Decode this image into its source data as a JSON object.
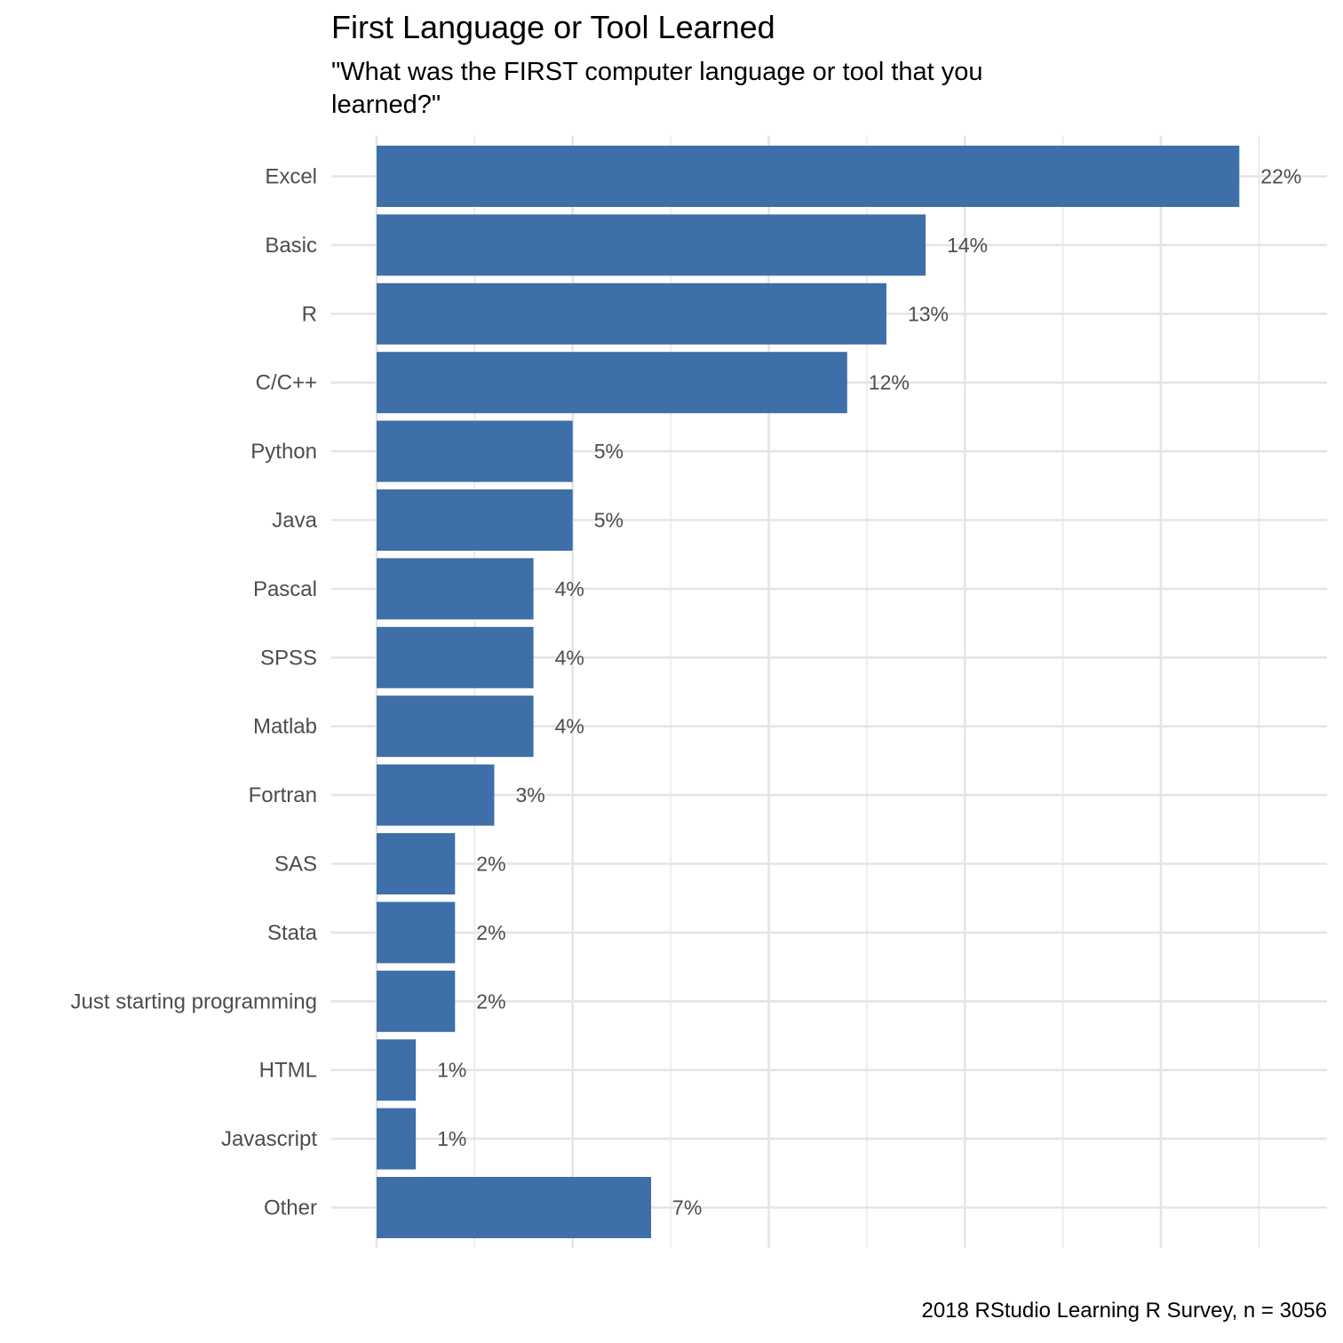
{
  "chart_data": {
    "type": "bar",
    "orientation": "horizontal",
    "title": "First Language or Tool Learned",
    "subtitle": "\"What was the FIRST computer language or tool that you learned?\"",
    "caption": "2018 RStudio Learning R Survey, n = 3056",
    "categories": [
      "Excel",
      "Basic",
      "R",
      "C/C++",
      "Python",
      "Java",
      "Pascal",
      "SPSS",
      "Matlab",
      "Fortran",
      "SAS",
      "Stata",
      "Just starting programming",
      "HTML",
      "Javascript",
      "Other"
    ],
    "values": [
      22,
      14,
      13,
      12,
      5,
      5,
      4,
      4,
      4,
      3,
      2,
      2,
      2,
      1,
      1,
      7
    ],
    "value_labels": [
      "22%",
      "14%",
      "13%",
      "12%",
      "5%",
      "5%",
      "4%",
      "4%",
      "4%",
      "3%",
      "2%",
      "2%",
      "2%",
      "1%",
      "1%",
      "7%"
    ],
    "xlim": [
      0,
      24
    ],
    "grid": true,
    "axis_text_x": false,
    "bar_color": "#3e6fa8",
    "grid_color": "#e5e5e5",
    "text_color": "#4d4d4d"
  }
}
